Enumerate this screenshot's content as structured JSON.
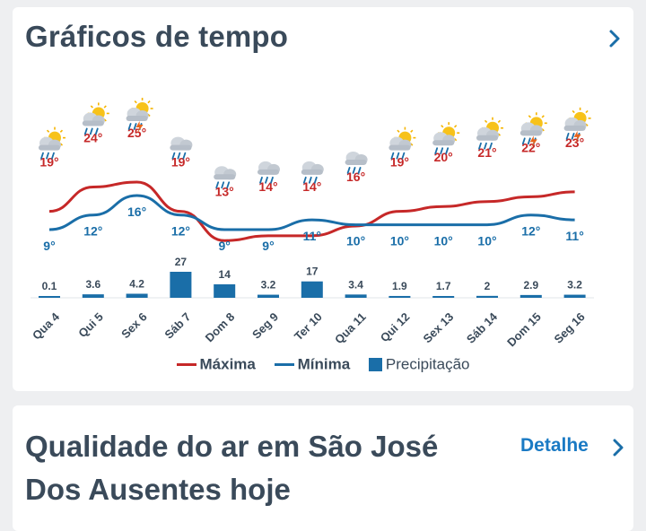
{
  "weather_chart_card": {
    "title": "Gráficos de tempo"
  },
  "chart_data": {
    "type": "line",
    "categories": [
      "Qua 4",
      "Qui 5",
      "Sex 6",
      "Sáb 7",
      "Dom 8",
      "Seg 9",
      "Ter 10",
      "Qua 11",
      "Qui 12",
      "Sex 13",
      "Sáb 14",
      "Dom 15",
      "Seg 16"
    ],
    "series": [
      {
        "name": "Máxima",
        "type": "line",
        "color": "#c62828",
        "values": [
          19,
          24,
          25,
          19,
          13,
          14,
          14,
          16,
          19,
          20,
          21,
          22,
          23
        ],
        "labels": [
          "19°",
          "24°",
          "25°",
          "19°",
          "13°",
          "14°",
          "14°",
          "16°",
          "19°",
          "20°",
          "21°",
          "22°",
          "23°"
        ]
      },
      {
        "name": "Mínima",
        "type": "line",
        "color": "#1a6ea8",
        "values": [
          9,
          12,
          16,
          12,
          9,
          9,
          11,
          10,
          10,
          10,
          10,
          12,
          11
        ],
        "labels": [
          "9°",
          "12°",
          "16°",
          "12°",
          "9°",
          "9°",
          "11°",
          "10°",
          "10°",
          "10°",
          "10°",
          "12°",
          "11°"
        ]
      },
      {
        "name": "Precipitação",
        "type": "bar",
        "color": "#1a6ea8",
        "values": [
          0.1,
          3.6,
          4.2,
          27,
          14,
          3.2,
          17,
          3.4,
          1.9,
          1.7,
          2,
          2.9,
          3.2
        ],
        "labels": [
          "0.1",
          "3.6",
          "4.2",
          "27",
          "14",
          "3.2",
          "17",
          "3.4",
          "1.9",
          "1.7",
          "2",
          "2.9",
          "3.2"
        ]
      }
    ],
    "icons": [
      "sun-cloud-rain-icon",
      "sun-cloud-rain-icon",
      "sun-cloud-storm-icon",
      "cloud-rain-icon",
      "cloud-rain-icon",
      "cloud-rain-icon",
      "cloud-rain-icon",
      "cloud-rain-icon",
      "sun-cloud-rain-icon",
      "sun-cloud-rain-icon",
      "sun-cloud-rain-icon",
      "sun-cloud-storm-icon",
      "sun-cloud-storm-icon"
    ],
    "legend": {
      "position": "bottom"
    },
    "grid": false
  },
  "air_quality_card": {
    "title": "Qualidade do ar em São José Dos Ausentes hoje",
    "detail_label": "Detalhe"
  }
}
